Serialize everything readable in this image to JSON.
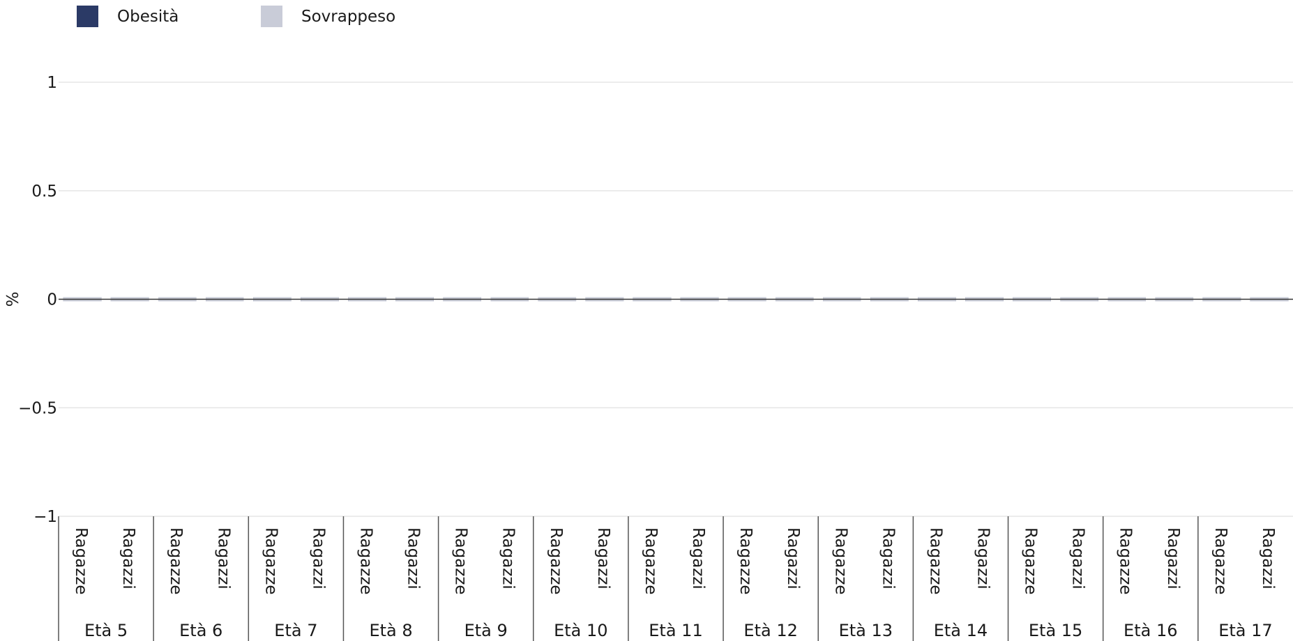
{
  "legend": {
    "items": [
      {
        "label": "Obesità",
        "color": "#2b3a66"
      },
      {
        "label": "Sovrappeso",
        "color": "#c9ccd8"
      }
    ]
  },
  "chart_data": {
    "type": "bar",
    "stacked": true,
    "ylabel": "%",
    "ylim": [
      -1,
      1
    ],
    "yticks": [
      "1",
      "0.5",
      "0",
      "−0.5",
      "−1"
    ],
    "grid": true,
    "legend_position": "top-left",
    "groups": [
      "Età 5",
      "Età 6",
      "Età 7",
      "Età 8",
      "Età 9",
      "Età 10",
      "Età 11",
      "Età 12",
      "Età 13",
      "Età 14",
      "Età 15",
      "Età 16",
      "Età 17"
    ],
    "subcategories": [
      "Ragazze",
      "Ragazzi"
    ],
    "series": [
      {
        "name": "Obesità",
        "values": [
          0,
          0,
          0,
          0,
          0,
          0,
          0,
          0,
          0,
          0,
          0,
          0,
          0,
          0,
          0,
          0,
          0,
          0,
          0,
          0,
          0,
          0,
          0,
          0,
          0,
          0
        ]
      },
      {
        "name": "Sovrappeso",
        "values": [
          0,
          0,
          0,
          0,
          0,
          0,
          0,
          0,
          0,
          0,
          0,
          0,
          0,
          0,
          0,
          0,
          0,
          0,
          0,
          0,
          0,
          0,
          0,
          0,
          0,
          0
        ]
      }
    ]
  }
}
